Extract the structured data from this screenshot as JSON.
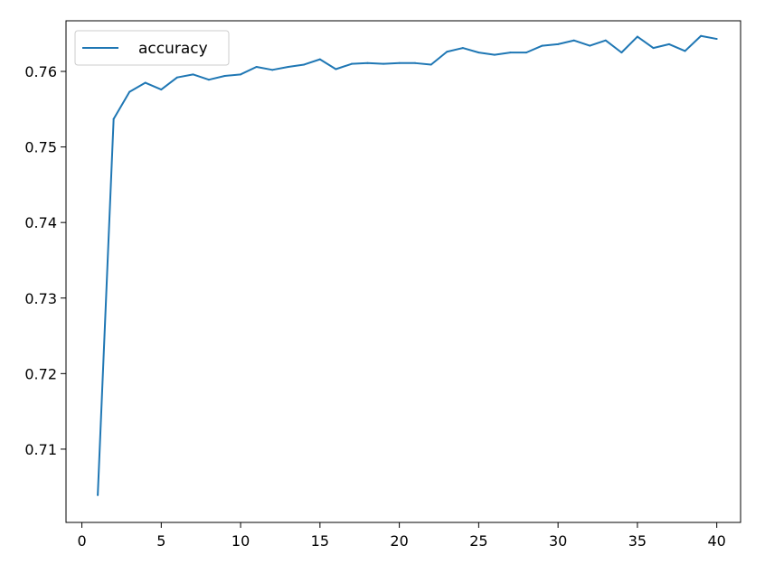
{
  "chart_data": {
    "type": "line",
    "title": "",
    "xlabel": "",
    "ylabel": "",
    "xlim": [
      -1,
      41.5
    ],
    "ylim": [
      0.7003,
      0.7667
    ],
    "x_ticks": [
      0,
      5,
      10,
      15,
      20,
      25,
      30,
      35,
      40
    ],
    "y_ticks": [
      0.71,
      0.72,
      0.73,
      0.74,
      0.75,
      0.76
    ],
    "y_tick_labels": [
      "0.71",
      "0.72",
      "0.73",
      "0.74",
      "0.75",
      "0.76"
    ],
    "grid": false,
    "legend_position": "upper-left",
    "series": [
      {
        "name": "accuracy",
        "color": "#1f77b4",
        "x": [
          1,
          2,
          3,
          4,
          5,
          6,
          7,
          8,
          9,
          10,
          11,
          12,
          13,
          14,
          15,
          16,
          17,
          18,
          19,
          20,
          21,
          22,
          23,
          24,
          25,
          26,
          27,
          28,
          29,
          30,
          31,
          32,
          33,
          34,
          35,
          36,
          37,
          38,
          39,
          40
        ],
        "y": [
          0.7039,
          0.7537,
          0.7573,
          0.7585,
          0.7576,
          0.7592,
          0.7596,
          0.7589,
          0.7594,
          0.7596,
          0.7606,
          0.7602,
          0.7606,
          0.7609,
          0.7616,
          0.7603,
          0.761,
          0.7611,
          0.761,
          0.7611,
          0.7611,
          0.7609,
          0.7626,
          0.7631,
          0.7625,
          0.7622,
          0.7625,
          0.7625,
          0.7634,
          0.7636,
          0.7641,
          0.7634,
          0.7641,
          0.7625,
          0.7646,
          0.7631,
          0.7636,
          0.7627,
          0.7647,
          0.7643
        ]
      }
    ]
  }
}
